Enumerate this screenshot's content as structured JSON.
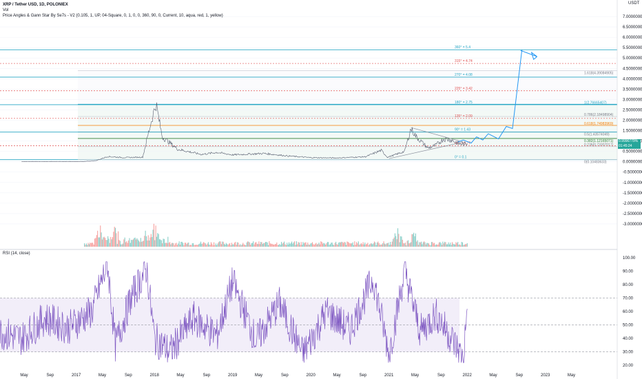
{
  "header": {
    "title": "XRP / Tether USD, 1D, POLONIEX",
    "vol_label": "Vol",
    "indicator": "Price Angles & Gann Star By Se7s - V2 (0.105, 1, UP, 04-Square, 0, 1, 0, 0, 360, 90, 0, Current, 10, aqua, red, 1, yellow)",
    "rsi_label": "RSI (14, close)",
    "currency": "USDT"
  },
  "price_badge": {
    "value": "0.9996779%",
    "sub": "01:45:24"
  },
  "colors": {
    "accent": "#2962ff",
    "aqua": "#26a6c4",
    "red": "#e05050",
    "orange": "#f57c00",
    "green": "#2e7d32",
    "gray": "#787b86",
    "up": "#26a69a",
    "down": "#ef5350",
    "rsi": "#7e57c2",
    "projection": "#2196f3"
  },
  "chart_data": [
    {
      "type": "line",
      "title": "XRP / Tether USD, 1D, POLONIEX",
      "ylim": [
        -3.5,
        7.5
      ],
      "y_ticks": [
        "7.00000000",
        "6.50000000",
        "6.00000000",
        "5.50000000",
        "5.00000000",
        "4.50000000",
        "4.00000000",
        "3.50000000",
        "3.00000000",
        "2.50000000",
        "2.00000000",
        "1.50000000",
        "1.00000000",
        "0.50000000",
        "0.00000000",
        "-0.50000000",
        "-1.00000000",
        "-1.50000000",
        "-2.00000000",
        "-2.50000000",
        "-3.00000000"
      ],
      "x_ticks": [
        "May",
        "Sep",
        "2017",
        "May",
        "Sep",
        "2018",
        "May",
        "Sep",
        "2019",
        "May",
        "Sep",
        "2020",
        "May",
        "Sep",
        "2021",
        "May",
        "Sep",
        "2022",
        "May",
        "Sep",
        "2023",
        "May"
      ],
      "series": [
        {
          "x": [
            2016.3,
            2016.9,
            2017.1,
            2017.25,
            2017.4,
            2017.6,
            2017.85,
            2017.95,
            2018.02,
            2018.1,
            2018.3,
            2018.6,
            2018.8,
            2019.0,
            2019.4,
            2019.7,
            2020.0,
            2020.3,
            2020.7,
            2020.9,
            2020.98,
            2021.05,
            2021.2,
            2021.28,
            2021.35,
            2021.5,
            2021.6,
            2021.7,
            2021.8,
            2021.9,
            2022.0
          ],
          "y": [
            0.005,
            0.007,
            0.01,
            0.05,
            0.25,
            0.2,
            0.22,
            1.8,
            2.8,
            1.2,
            0.6,
            0.35,
            0.45,
            0.33,
            0.4,
            0.28,
            0.2,
            0.18,
            0.24,
            0.55,
            0.22,
            0.3,
            0.5,
            1.6,
            1.2,
            0.65,
            0.8,
            1.1,
            1.05,
            0.85,
            0.85
          ]
        }
      ],
      "levels": [
        {
          "label": "360° = 5.4",
          "value": 5.4,
          "color": "aqua",
          "style": "solid"
        },
        {
          "label": "315° = 4.74",
          "value": 4.74,
          "color": "red",
          "style": "dashed"
        },
        {
          "label": "1.618(4.39084905)",
          "value": 4.39,
          "color": "gray",
          "style": "solid"
        },
        {
          "label": "270° = 4.08",
          "value": 4.08,
          "color": "aqua",
          "style": "solid"
        },
        {
          "label": "225° = 3.42",
          "value": 3.42,
          "color": "red",
          "style": "dashed"
        },
        {
          "label": "1(2.76665407)",
          "value": 2.77,
          "color": "aqua",
          "style": "solid"
        },
        {
          "label": "180° = 2.75",
          "value": 2.75,
          "color": "aqua",
          "style": "solid"
        },
        {
          "label": "0.786(2.18498904)",
          "value": 2.18,
          "color": "gray",
          "style": "solid"
        },
        {
          "label": "135° = 2.09",
          "value": 2.09,
          "color": "red",
          "style": "dashed"
        },
        {
          "label": "0.618(1.74983969)",
          "value": 1.75,
          "color": "orange",
          "style": "solid"
        },
        {
          "label": "0.5(1.43574049)",
          "value": 1.44,
          "color": "gray",
          "style": "solid"
        },
        {
          "label": "90° = 1.43",
          "value": 1.43,
          "color": "aqua",
          "style": "solid"
        },
        {
          "label": "0.382(1.12165071)",
          "value": 1.12,
          "color": "green",
          "style": "solid"
        },
        {
          "label": "0.236(0.73307017)",
          "value": 0.73,
          "color": "gray",
          "style": "solid"
        },
        {
          "label": "45° = 0.77",
          "value": 0.77,
          "color": "red",
          "style": "dashed"
        },
        {
          "label": "0° = 0.1",
          "value": 0.1,
          "color": "aqua",
          "style": "solid"
        },
        {
          "label": "0(0.10483633)",
          "value": 0.1,
          "color": "gray",
          "style": "solid"
        }
      ],
      "projection": {
        "x": [
          2021.88,
          2021.95,
          2022.05,
          2022.12,
          2022.2,
          2022.27,
          2022.4,
          2022.5,
          2022.58,
          2022.7
        ],
        "y": [
          0.95,
          1.05,
          0.9,
          1.2,
          1.05,
          1.35,
          1.1,
          1.7,
          1.6,
          5.4
        ]
      }
    },
    {
      "type": "bar",
      "title": "Vol",
      "note": "volume histogram overlaid in the lower price pane",
      "peaks_x": [
        2017.3,
        2017.5,
        2017.9,
        2018.0,
        2021.1,
        2021.3
      ]
    },
    {
      "type": "line",
      "title": "RSI (14, close)",
      "ylim": [
        15,
        102
      ],
      "y_ticks": [
        "100.00",
        "90.00",
        "80.00",
        "70.00",
        "60.00",
        "50.00",
        "40.00",
        "30.00",
        "20.00"
      ],
      "bands": {
        "upper": 70,
        "middle": 50,
        "lower": 30
      },
      "series": [
        {
          "x": [
            2016.0,
            2016.3,
            2016.6,
            2016.9,
            2017.2,
            2017.4,
            2017.5,
            2017.7,
            2017.9,
            2018.0,
            2018.2,
            2018.5,
            2018.8,
            2019.0,
            2019.3,
            2019.6,
            2019.9,
            2020.2,
            2020.5,
            2020.8,
            2021.0,
            2021.2,
            2021.4,
            2021.6,
            2021.8,
            2021.95,
            2022.0
          ],
          "y": [
            45,
            40,
            55,
            48,
            60,
            96,
            35,
            70,
            92,
            40,
            30,
            55,
            42,
            82,
            38,
            66,
            28,
            60,
            46,
            85,
            28,
            90,
            45,
            58,
            40,
            25,
            62
          ]
        }
      ]
    }
  ]
}
